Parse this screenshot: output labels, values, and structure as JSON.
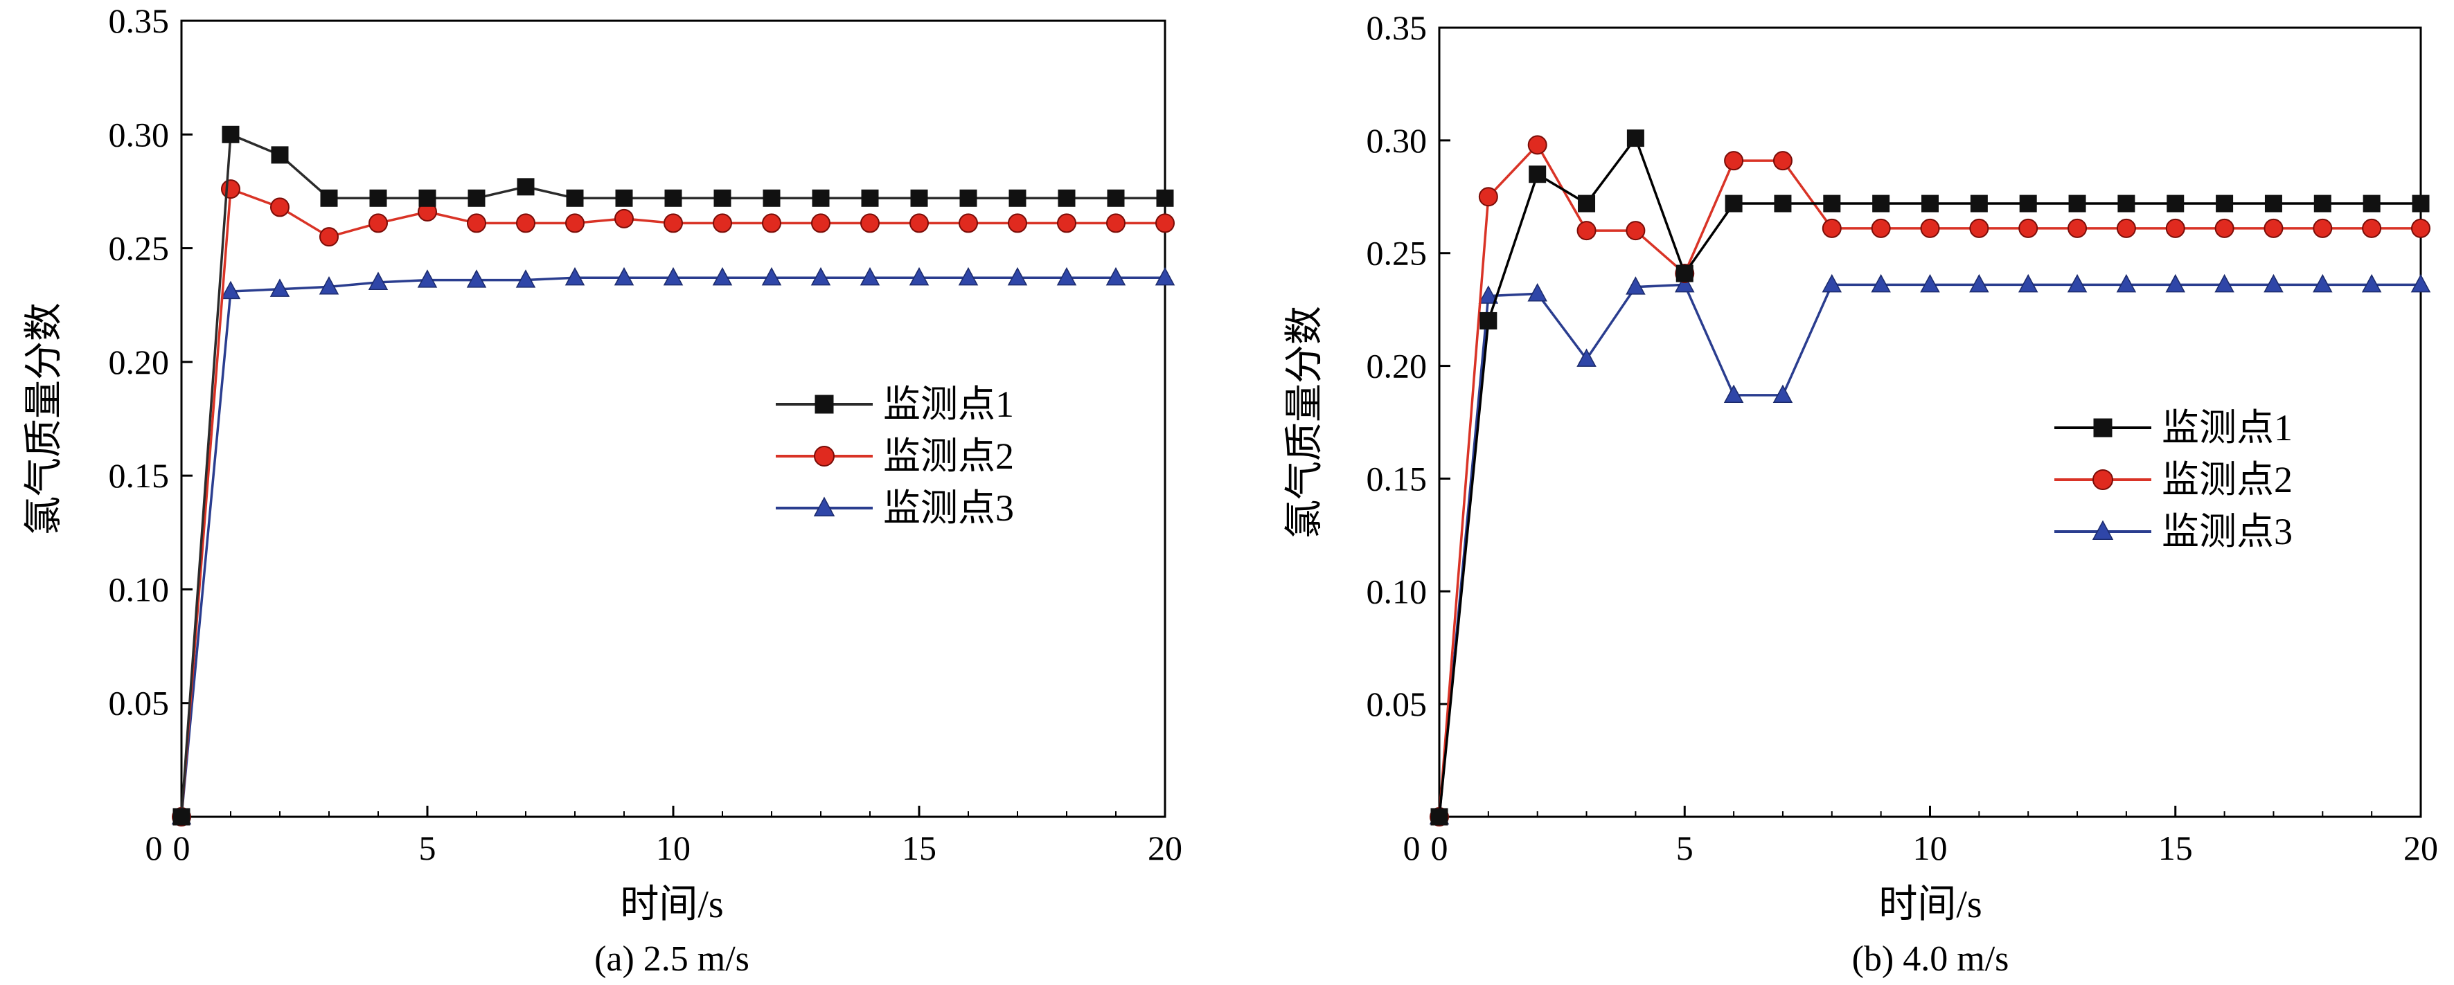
{
  "chart_data": [
    {
      "type": "line",
      "caption": "(a) 2.5 m/s",
      "xlabel": "时间/s",
      "ylabel": "氯气质量分数",
      "xlim": [
        0,
        20
      ],
      "ylim": [
        0,
        0.35
      ],
      "xticks": [
        0,
        5,
        10,
        15,
        20
      ],
      "xtick_labels": [
        "0",
        "5",
        "10",
        "15",
        "20"
      ],
      "yticks": [
        0.05,
        0.1,
        0.15,
        0.2,
        0.25,
        0.3,
        0.35
      ],
      "ytick_labels": [
        "0.05",
        "0.10",
        "0.15",
        "0.20",
        "0.25",
        "0.30",
        "0.35"
      ],
      "legend_position": "center-right",
      "series": [
        {
          "name": "监测点1",
          "marker": "square",
          "color": "#2b2b2b",
          "x": [
            0,
            1,
            2,
            3,
            4,
            5,
            6,
            7,
            8,
            9,
            10,
            11,
            12,
            13,
            14,
            15,
            16,
            17,
            18,
            19,
            20
          ],
          "values": [
            0,
            0.3,
            0.291,
            0.272,
            0.272,
            0.272,
            0.272,
            0.277,
            0.272,
            0.272,
            0.272,
            0.272,
            0.272,
            0.272,
            0.272,
            0.272,
            0.272,
            0.272,
            0.272,
            0.272,
            0.272
          ]
        },
        {
          "name": "监测点2",
          "marker": "circle",
          "color": "#d93326",
          "x": [
            0,
            1,
            2,
            3,
            4,
            5,
            6,
            7,
            8,
            9,
            10,
            11,
            12,
            13,
            14,
            15,
            16,
            17,
            18,
            19,
            20
          ],
          "values": [
            0,
            0.276,
            0.268,
            0.255,
            0.261,
            0.266,
            0.261,
            0.261,
            0.261,
            0.263,
            0.261,
            0.261,
            0.261,
            0.261,
            0.261,
            0.261,
            0.261,
            0.261,
            0.261,
            0.261,
            0.261
          ]
        },
        {
          "name": "监测点3",
          "marker": "triangle",
          "color": "#2a3d8f",
          "x": [
            0,
            1,
            2,
            3,
            4,
            5,
            6,
            7,
            8,
            9,
            10,
            11,
            12,
            13,
            14,
            15,
            16,
            17,
            18,
            19,
            20
          ],
          "values": [
            0,
            0.231,
            0.232,
            0.233,
            0.235,
            0.236,
            0.236,
            0.236,
            0.237,
            0.237,
            0.237,
            0.237,
            0.237,
            0.237,
            0.237,
            0.237,
            0.237,
            0.237,
            0.237,
            0.237,
            0.237
          ]
        }
      ]
    },
    {
      "type": "line",
      "caption": "(b) 4.0 m/s",
      "xlabel": "时间/s",
      "ylabel": "氯气质量分数",
      "xlim": [
        0,
        20
      ],
      "ylim": [
        0,
        0.35
      ],
      "xticks": [
        0,
        5,
        10,
        15,
        20
      ],
      "xtick_labels": [
        "0",
        "5",
        "10",
        "15",
        "20"
      ],
      "yticks": [
        0.05,
        0.1,
        0.15,
        0.2,
        0.25,
        0.3,
        0.35
      ],
      "ytick_labels": [
        "0.05",
        "0.10",
        "0.15",
        "0.20",
        "0.25",
        "0.30",
        "0.35"
      ],
      "legend_position": "center-right",
      "series": [
        {
          "name": "监测点1",
          "marker": "square",
          "color": "#000000",
          "x": [
            0,
            1,
            2,
            3,
            4,
            5,
            6,
            7,
            8,
            9,
            10,
            11,
            12,
            13,
            14,
            15,
            16,
            17,
            18,
            19,
            20
          ],
          "values": [
            0,
            0.22,
            0.285,
            0.272,
            0.301,
            0.241,
            0.272,
            0.272,
            0.272,
            0.272,
            0.272,
            0.272,
            0.272,
            0.272,
            0.272,
            0.272,
            0.272,
            0.272,
            0.272,
            0.272,
            0.272
          ]
        },
        {
          "name": "监测点2",
          "marker": "circle",
          "color": "#d93326",
          "x": [
            0,
            1,
            2,
            3,
            4,
            5,
            6,
            7,
            8,
            9,
            10,
            11,
            12,
            13,
            14,
            15,
            16,
            17,
            18,
            19,
            20
          ],
          "values": [
            0,
            0.275,
            0.298,
            0.26,
            0.26,
            0.241,
            0.291,
            0.291,
            0.261,
            0.261,
            0.261,
            0.261,
            0.261,
            0.261,
            0.261,
            0.261,
            0.261,
            0.261,
            0.261,
            0.261,
            0.261
          ]
        },
        {
          "name": "监测点3",
          "marker": "triangle",
          "color": "#2a3d8f",
          "x": [
            0,
            1,
            2,
            3,
            4,
            5,
            6,
            7,
            8,
            9,
            10,
            11,
            12,
            13,
            14,
            15,
            16,
            17,
            18,
            19,
            20
          ],
          "values": [
            0,
            0.231,
            0.232,
            0.203,
            0.235,
            0.236,
            0.187,
            0.187,
            0.236,
            0.236,
            0.236,
            0.236,
            0.236,
            0.236,
            0.236,
            0.236,
            0.236,
            0.236,
            0.236,
            0.236,
            0.236
          ]
        }
      ]
    }
  ]
}
